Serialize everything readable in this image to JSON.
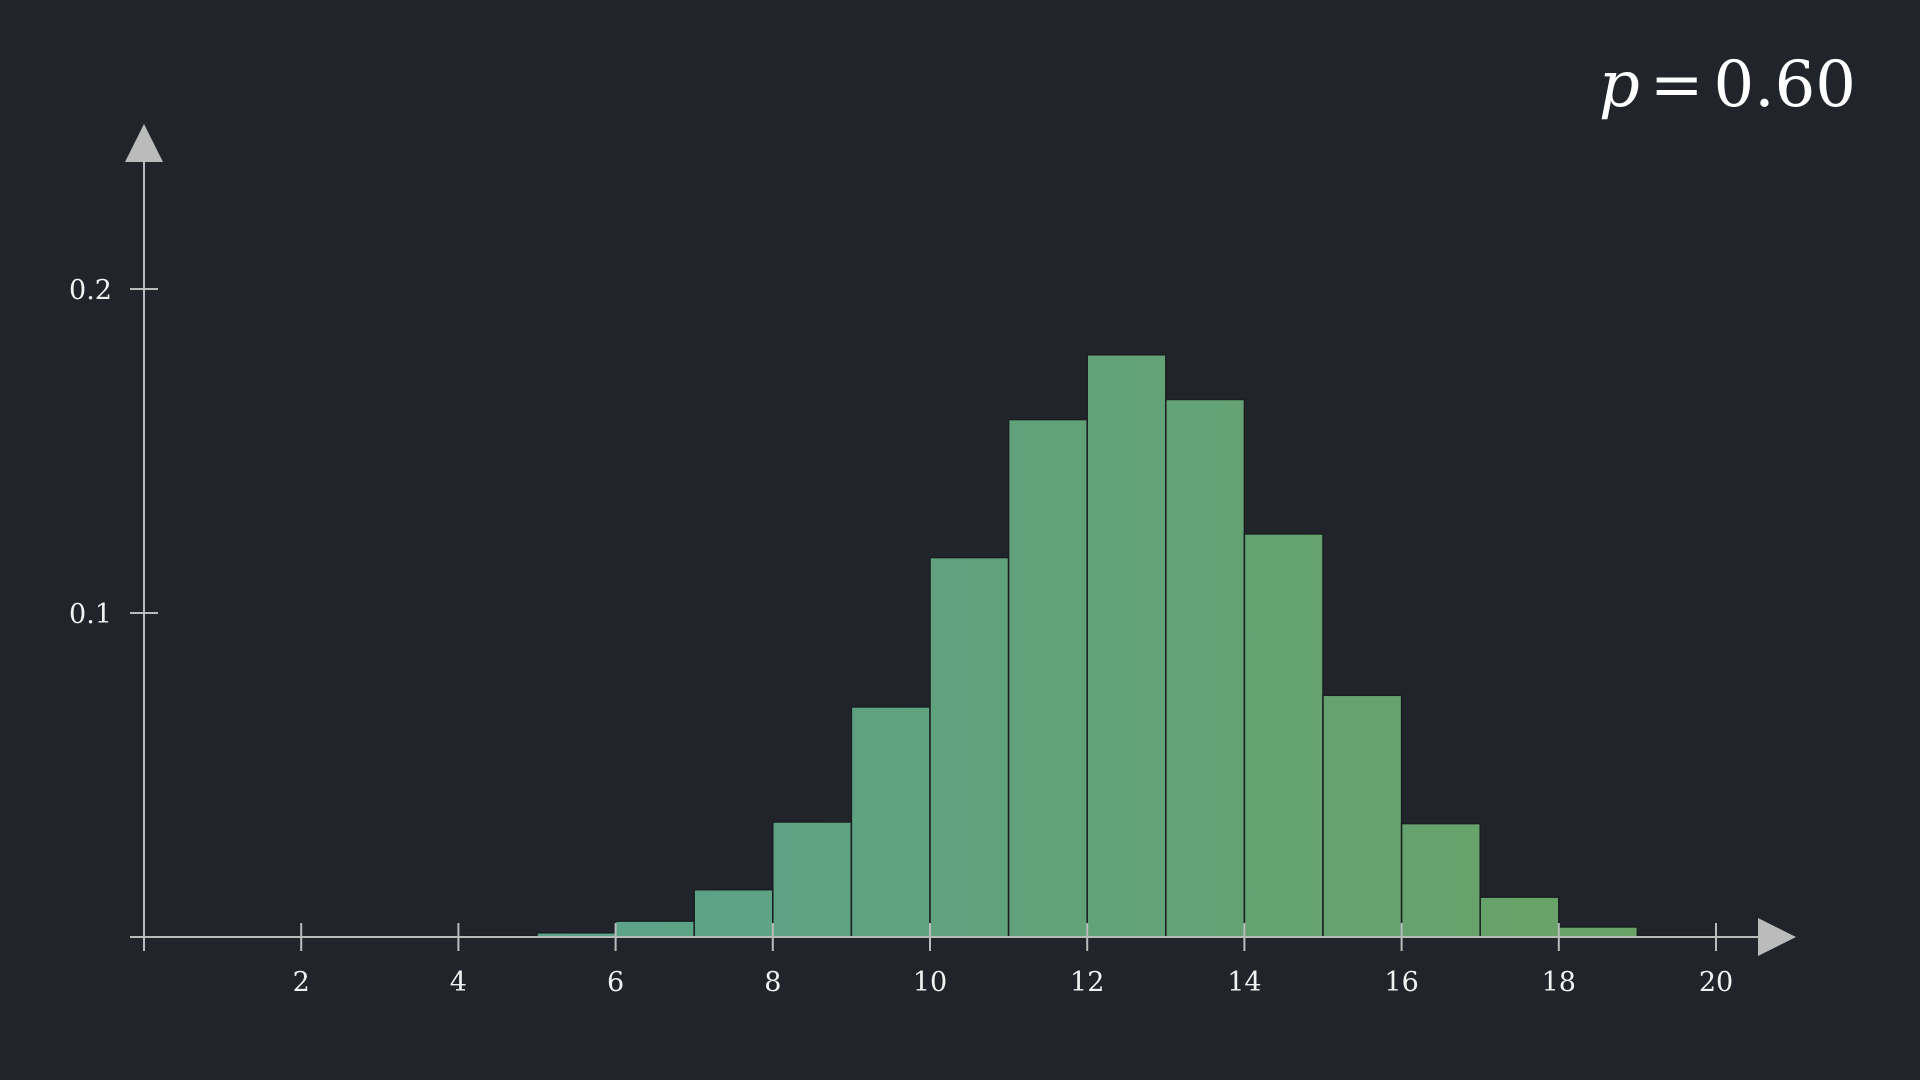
{
  "parameter": {
    "symbol": "p",
    "equals": "=",
    "value": "0.60"
  },
  "colors": {
    "background": "#21252b",
    "axis": "#bbbbbb",
    "bar_start": "#55a39a",
    "bar_end": "#6aa262",
    "bar_stroke": "#1a1d21",
    "text": "#f2f2f2"
  },
  "chart_data": {
    "type": "bar",
    "title": "",
    "xlabel": "",
    "ylabel": "",
    "x": [
      0,
      1,
      2,
      3,
      4,
      5,
      6,
      7,
      8,
      9,
      10,
      11,
      12,
      13,
      14,
      15,
      16,
      17,
      18,
      19
    ],
    "values": [
      0.0,
      0.0,
      0.0,
      0.0,
      0.0003,
      0.0013,
      0.0049,
      0.0146,
      0.0355,
      0.071,
      0.1171,
      0.1597,
      0.1797,
      0.1659,
      0.1244,
      0.0746,
      0.035,
      0.0123,
      0.0031,
      0.0005
    ],
    "xlim": [
      0,
      20
    ],
    "ylim": [
      0,
      0.25
    ],
    "x_ticks": [
      2,
      4,
      6,
      8,
      10,
      12,
      14,
      16,
      18,
      20
    ],
    "x_tick_labels": [
      "2",
      "4",
      "6",
      "8",
      "10",
      "12",
      "14",
      "16",
      "18",
      "20"
    ],
    "y_ticks": [
      0.1,
      0.2
    ],
    "y_tick_labels": [
      "0.1",
      "0.2"
    ],
    "grid": false,
    "legend": "none"
  }
}
